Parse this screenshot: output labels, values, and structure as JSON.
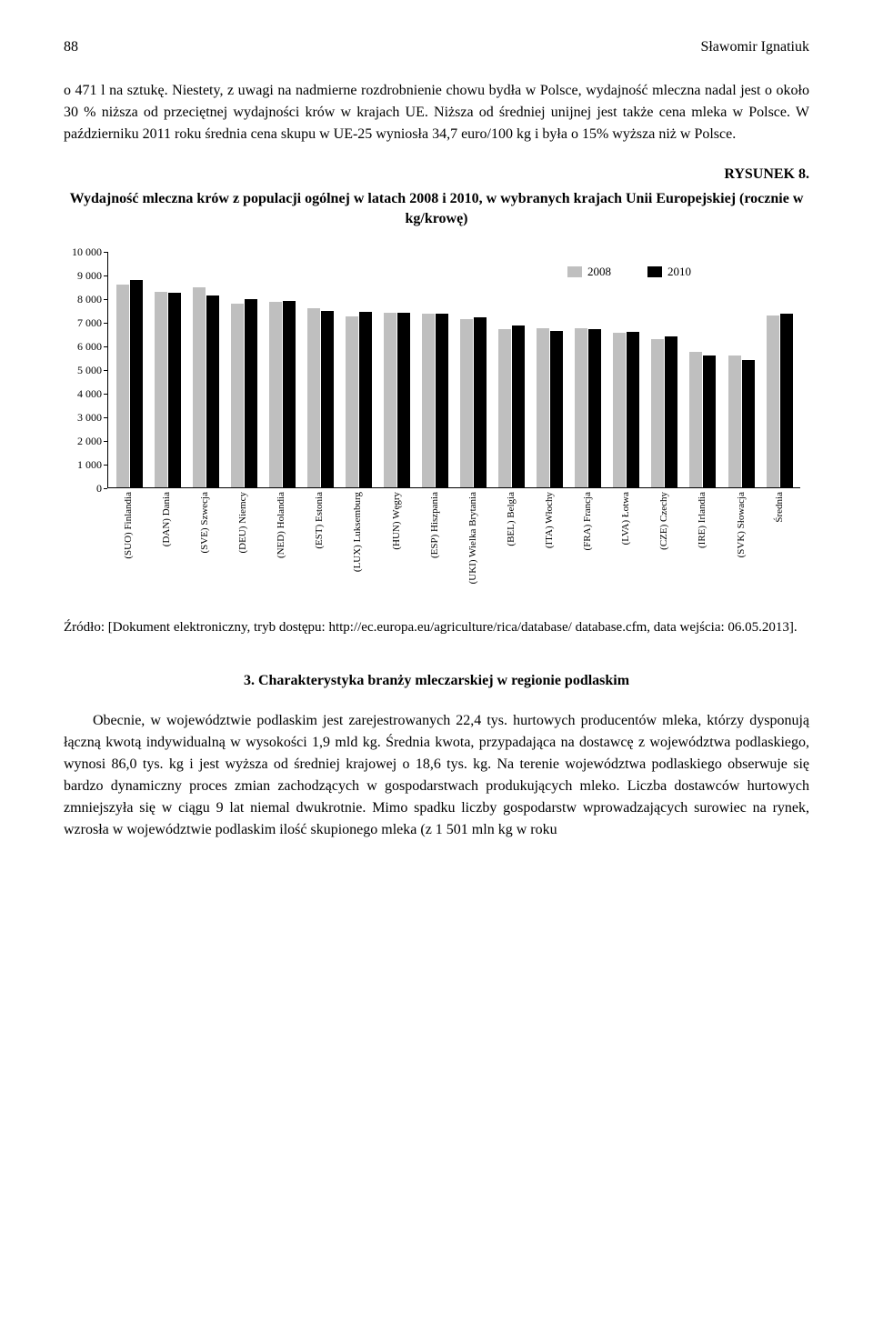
{
  "header": {
    "page_number": "88",
    "author": "Sławomir Ignatiuk"
  },
  "paragraph1": "o 471 l na sztukę. Niestety, z uwagi na nadmierne rozdrobnienie chowu bydła w Polsce, wydajność mleczna nadal jest o około 30 % niższa od przeciętnej wydajności krów w krajach UE. Niższa od średniej unijnej jest także cena mleka w Polsce. W październiku 2011 roku średnia cena skupu w UE-25 wyniosła 34,7 euro/100 kg i była o 15% wyższa niż w Polsce.",
  "figure": {
    "label": "RYSUNEK 8.",
    "title": "Wydajność mleczna krów z populacji ogólnej w latach 2008 i 2010, w wybranych krajach Unii Europejskiej (rocznie w kg/krowę)"
  },
  "chart": {
    "type": "bar",
    "legend": [
      "2008",
      "2010"
    ],
    "colors": [
      "#bfbfbf",
      "#000000"
    ],
    "ylim": [
      0,
      10000
    ],
    "ytick_step": 1000,
    "yticks": [
      0,
      1000,
      2000,
      3000,
      4000,
      5000,
      6000,
      7000,
      8000,
      9000,
      10000
    ],
    "ytick_labels": [
      "0",
      "1 000",
      "2 000",
      "3 000",
      "4 000",
      "5 000",
      "6 000",
      "7 000",
      "8 000",
      "9 000",
      "10 000"
    ],
    "categories": [
      "(SUO) Finlandia",
      "(DAN) Dania",
      "(SVE) Szwecja",
      "(DEU) Niemcy",
      "(NED) Holandia",
      "(EST) Estonia",
      "(LUX) Luksemburg",
      "(HUN) Węgry",
      "(ESP) Hiszpania",
      "(UKI) Wielka Brytania",
      "(BEL) Belgia",
      "(ITA) Włochy",
      "(FRA) Francja",
      "(LVA) Łotwa",
      "(CZE) Czechy",
      "(IRE) Irlandia",
      "(SVK) Słowacja",
      "Średnia"
    ],
    "values_2008": [
      8600,
      8300,
      8500,
      7800,
      7850,
      7600,
      7250,
      7400,
      7350,
      7150,
      6700,
      6750,
      6750,
      6550,
      6300,
      5750,
      5600,
      7300
    ],
    "values_2010": [
      8800,
      8250,
      8150,
      8000,
      7900,
      7500,
      7450,
      7400,
      7350,
      7200,
      6850,
      6650,
      6700,
      6600,
      6400,
      5600,
      5400,
      7350
    ]
  },
  "source": "Źródło: [Dokument elektroniczny, tryb dostępu: http://ec.europa.eu/agriculture/rica/database/ database.cfm, data wejścia: 06.05.2013].",
  "section": {
    "heading": "3. Charakterystyka branży mleczarskiej w regionie podlaskim",
    "body": "Obecnie, w województwie podlaskim jest zarejestrowanych 22,4 tys. hurtowych producentów mleka, którzy dysponują łączną kwotą indywidualną w wysokości 1,9 mld kg. Średnia kwota, przypadająca na dostawcę z województwa podlaskiego, wynosi 86,0 tys. kg i jest wyższa od średniej krajowej o 18,6 tys. kg. Na terenie województwa podlaskiego obserwuje się bardzo dynamiczny proces zmian zachodzących w gospodarstwach produkujących mleko. Liczba dostawców hurtowych zmniejszyła się w ciągu 9 lat niemal dwukrotnie. Mimo spadku liczby gospodarstw wprowadzających surowiec na rynek, wzrosła w województwie podlaskim ilość skupionego mleka (z 1 501 mln kg w roku"
  }
}
